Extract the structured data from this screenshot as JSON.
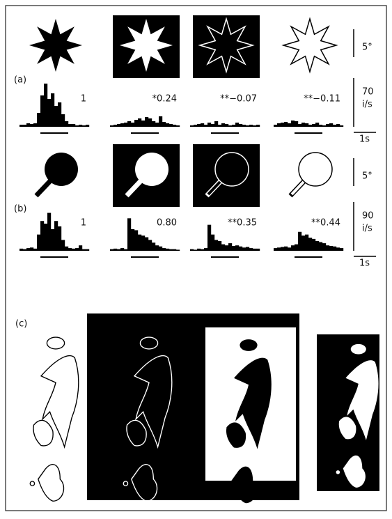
{
  "panels": [
    {
      "label": "(a)",
      "angle_scale": "5°",
      "rate_scale": 70,
      "rate_unit": "i/s",
      "time_scale": "1s",
      "histograms": [
        {
          "annotation": "1",
          "counts": [
            3,
            3,
            5,
            4,
            5,
            20,
            45,
            62,
            40,
            48,
            30,
            35,
            18,
            8,
            4,
            4,
            2,
            3,
            2,
            3
          ]
        },
        {
          "annotation": "*0.24",
          "counts": [
            2,
            3,
            4,
            5,
            6,
            8,
            6,
            10,
            12,
            9,
            14,
            12,
            8,
            6,
            15,
            7,
            5,
            4,
            3,
            2
          ]
        },
        {
          "annotation": "**−0.07",
          "counts": [
            2,
            3,
            4,
            5,
            3,
            6,
            4,
            8,
            3,
            5,
            4,
            2,
            3,
            6,
            4,
            3,
            2,
            3,
            2,
            3
          ]
        },
        {
          "annotation": "**−0.11",
          "counts": [
            3,
            5,
            6,
            7,
            5,
            9,
            8,
            4,
            6,
            5,
            3,
            4,
            6,
            3,
            2,
            4,
            5,
            3,
            4,
            2
          ]
        }
      ]
    },
    {
      "label": "(b)",
      "angle_scale": "5°",
      "rate_scale": 90,
      "rate_unit": "i/s",
      "time_scale": "1s",
      "histograms": [
        {
          "annotation": "1",
          "counts": [
            4,
            3,
            5,
            6,
            4,
            30,
            55,
            50,
            70,
            40,
            55,
            45,
            20,
            8,
            5,
            4,
            5,
            10,
            3,
            3
          ]
        },
        {
          "annotation": "0.80",
          "counts": [
            3,
            4,
            3,
            5,
            3,
            60,
            40,
            38,
            30,
            28,
            25,
            20,
            15,
            10,
            8,
            5,
            4,
            3,
            3,
            2
          ]
        },
        {
          "annotation": "**0.35",
          "counts": [
            3,
            2,
            4,
            3,
            5,
            48,
            30,
            20,
            18,
            12,
            10,
            14,
            9,
            10,
            8,
            6,
            7,
            5,
            4,
            4
          ]
        },
        {
          "annotation": "**0.44",
          "counts": [
            5,
            6,
            7,
            8,
            6,
            10,
            12,
            35,
            28,
            30,
            24,
            22,
            18,
            16,
            14,
            10,
            9,
            8,
            6,
            5
          ]
        }
      ]
    }
  ],
  "panel_c": {
    "label": "(c)"
  }
}
